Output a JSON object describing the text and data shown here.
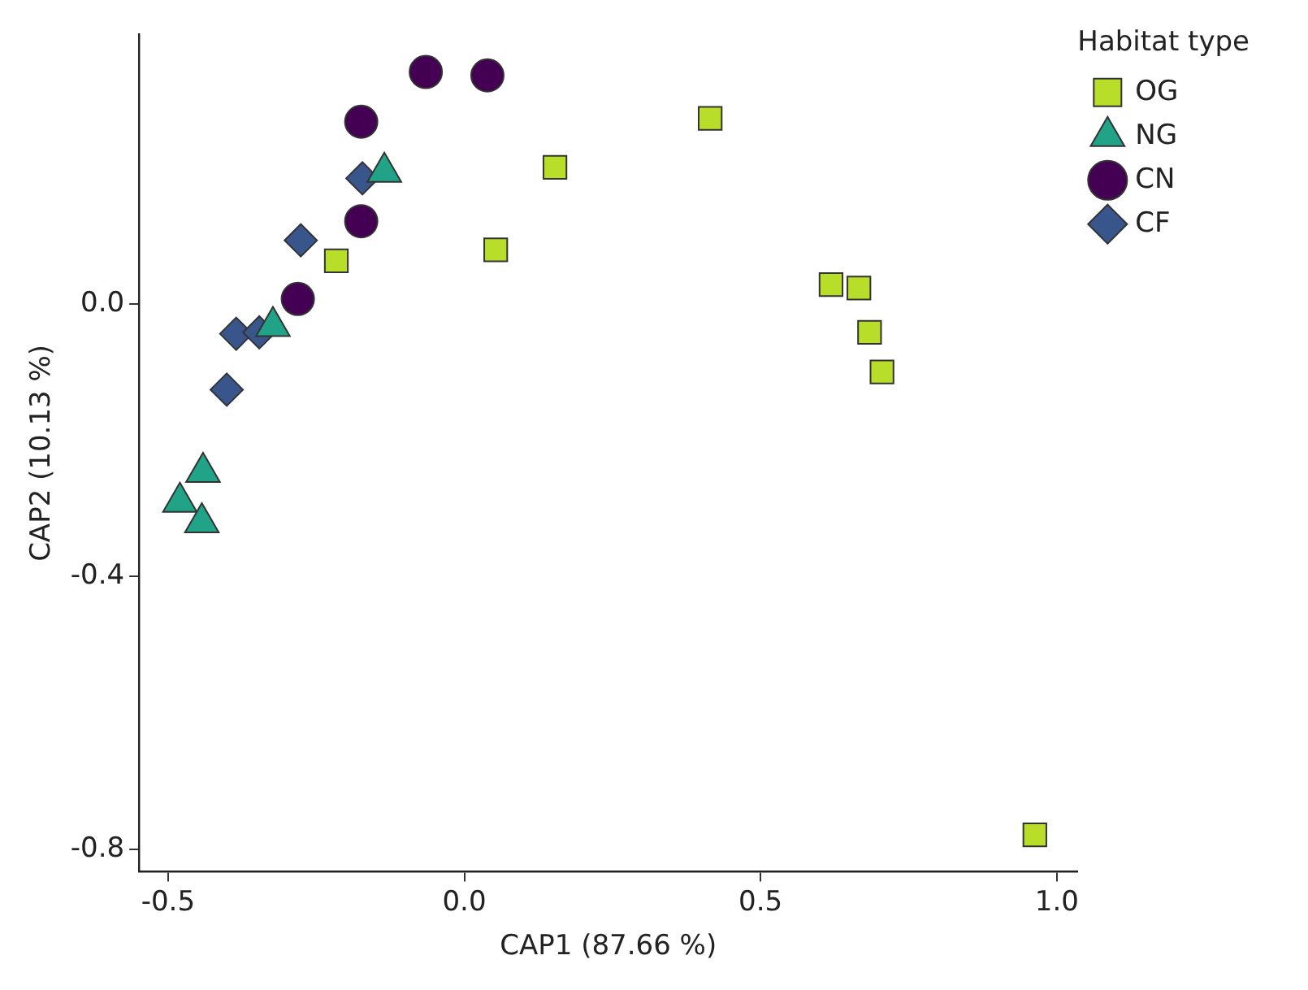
{
  "chart_data": {
    "type": "scatter",
    "xlabel": "CAP1 (87.66 %)",
    "ylabel": "CAP2 (10.13 %)",
    "legend_title": "Habitat type",
    "legend": "top right",
    "grid": false,
    "xlim": [
      -0.549,
      1.035
    ],
    "ylim": [
      -0.833,
      0.395
    ],
    "xticks": [
      -0.5,
      {
        "value": 0,
        "label": "0.0"
      },
      0.5,
      {
        "value": 1,
        "label": "1.0"
      }
    ],
    "yticks": [
      {
        "value": -0.8,
        "label": "-0.8"
      },
      {
        "value": -0.4,
        "label": "-0.4"
      },
      {
        "value": 0,
        "label": "0.0"
      }
    ],
    "series": [
      {
        "name": "OG",
        "color": "#b8de29",
        "marker": "square",
        "x": [
          0.415,
          0.153,
          0.053,
          -0.216,
          0.619,
          0.666,
          0.684,
          0.705,
          0.963
        ],
        "values": [
          0.272,
          0.2,
          0.079,
          0.063,
          0.028,
          0.023,
          -0.042,
          -0.1,
          -0.779
        ]
      },
      {
        "name": "NG",
        "color": "#20a387",
        "marker": "triangle",
        "x": [
          -0.135,
          -0.323,
          -0.441,
          -0.48,
          -0.443
        ],
        "values": [
          0.193,
          -0.033,
          -0.247,
          -0.291,
          -0.321
        ]
      },
      {
        "name": "CN",
        "color": "#440154",
        "marker": "circle",
        "x": [
          -0.065,
          0.039,
          -0.174,
          -0.174,
          -0.281
        ],
        "values": [
          0.34,
          0.335,
          0.267,
          0.121,
          0.007
        ]
      },
      {
        "name": "CF",
        "color": "#39568c",
        "marker": "diamond",
        "x": [
          -0.172,
          -0.276,
          -0.385,
          -0.346,
          -0.401
        ],
        "values": [
          0.184,
          0.093,
          -0.044,
          -0.042,
          -0.126
        ]
      }
    ]
  }
}
